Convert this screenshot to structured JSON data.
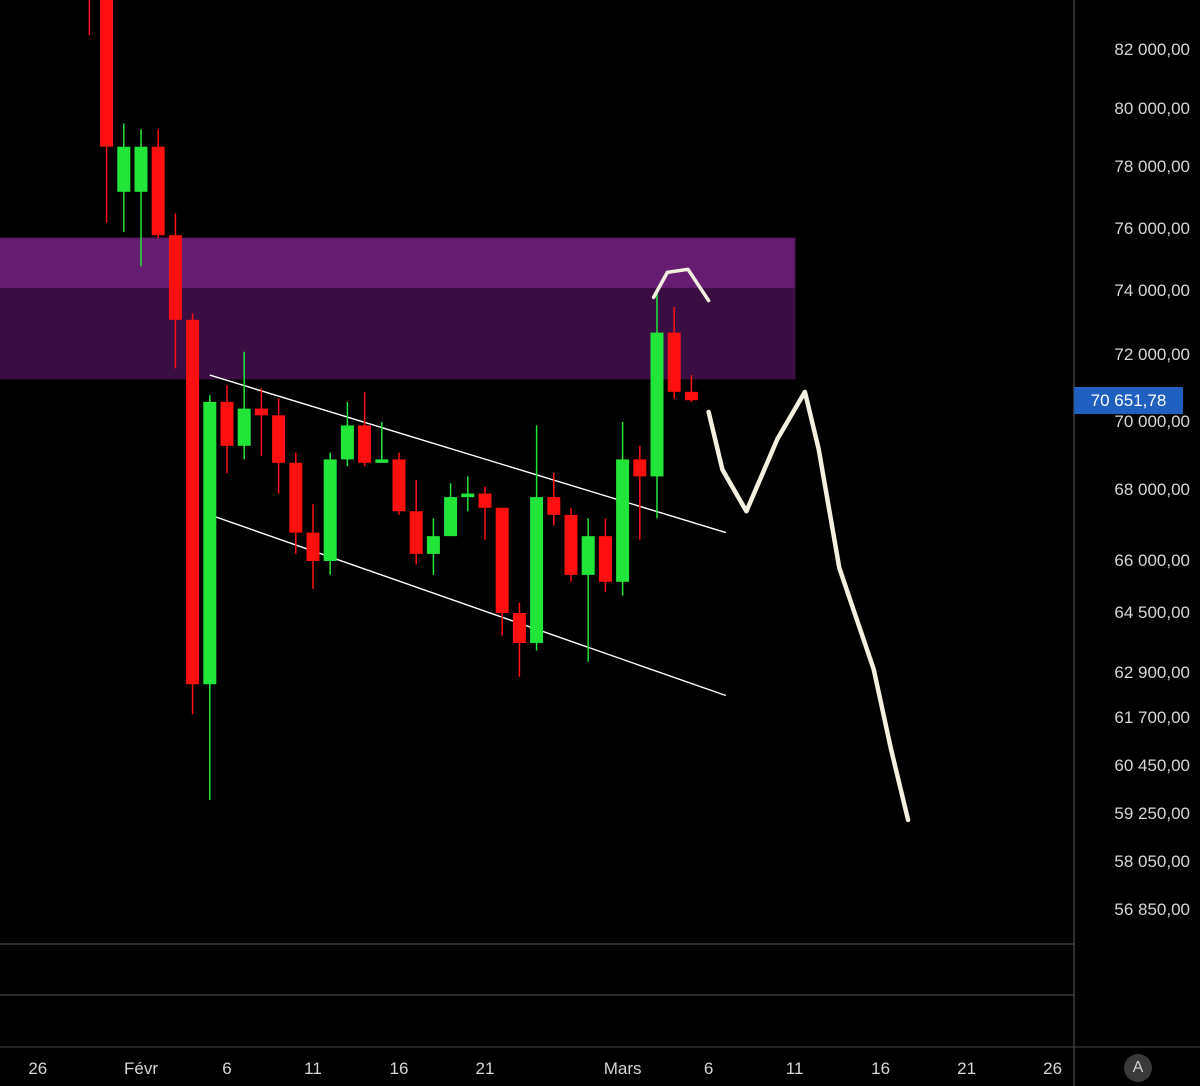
{
  "chart_data": {
    "type": "candlestick",
    "y_axis": {
      "ticks": [
        {
          "value": 82000,
          "label": "82 000,00"
        },
        {
          "value": 80000,
          "label": "80 000,00"
        },
        {
          "value": 78000,
          "label": "78 000,00"
        },
        {
          "value": 76000,
          "label": "76 000,00"
        },
        {
          "value": 74000,
          "label": "74 000,00"
        },
        {
          "value": 72000,
          "label": "72 000,00"
        },
        {
          "value": 70000,
          "label": "70 000,00"
        },
        {
          "value": 68000,
          "label": "68 000,00"
        },
        {
          "value": 66000,
          "label": "66 000,00"
        },
        {
          "value": 64500,
          "label": "64 500,00"
        },
        {
          "value": 62900,
          "label": "62 900,00"
        },
        {
          "value": 61700,
          "label": "61 700,00"
        },
        {
          "value": 60450,
          "label": "60 450,00"
        },
        {
          "value": 59250,
          "label": "59 250,00"
        },
        {
          "value": 58050,
          "label": "58 050,00"
        },
        {
          "value": 56850,
          "label": "56 850,00"
        }
      ]
    },
    "x_axis": {
      "ticks": [
        {
          "day": -6,
          "label": "26"
        },
        {
          "day": 0,
          "label": "Févr"
        },
        {
          "day": 5,
          "label": "6"
        },
        {
          "day": 10,
          "label": "11"
        },
        {
          "day": 15,
          "label": "16"
        },
        {
          "day": 20,
          "label": "21"
        },
        {
          "day": 28,
          "label": "Mars"
        },
        {
          "day": 33,
          "label": "6"
        },
        {
          "day": 38,
          "label": "11"
        },
        {
          "day": 43,
          "label": "16"
        },
        {
          "day": 48,
          "label": "21"
        },
        {
          "day": 53,
          "label": "26"
        }
      ]
    },
    "current_price": {
      "value": 70651.78,
      "label": "70 651,78"
    },
    "colors": {
      "up": "#22e53a",
      "down": "#ff1010",
      "zone": "#6a1a78",
      "zone_top": "#8a2a99",
      "drawing": "#f4f0e0"
    },
    "candles": [
      {
        "day": -3,
        "open": 85000,
        "high": 85500,
        "low": 82500,
        "close": 84000
      },
      {
        "day": -2,
        "open": 84500,
        "high": 85000,
        "low": 76200,
        "close": 78700
      },
      {
        "day": -1,
        "open": 77200,
        "high": 79500,
        "low": 75900,
        "close": 78700
      },
      {
        "day": 0,
        "open": 77200,
        "high": 79300,
        "low": 74800,
        "close": 78700
      },
      {
        "day": 1,
        "open": 78700,
        "high": 79300,
        "low": 75700,
        "close": 75800
      },
      {
        "day": 2,
        "open": 75800,
        "high": 76500,
        "low": 71600,
        "close": 73100
      },
      {
        "day": 3,
        "open": 73100,
        "high": 73300,
        "low": 61800,
        "close": 62600
      },
      {
        "day": 4,
        "open": 62600,
        "high": 70800,
        "low": 59600,
        "close": 70600
      },
      {
        "day": 5,
        "open": 70600,
        "high": 71100,
        "low": 68500,
        "close": 69300
      },
      {
        "day": 6,
        "open": 69300,
        "high": 72100,
        "low": 68900,
        "close": 70400
      },
      {
        "day": 7,
        "open": 70400,
        "high": 71000,
        "low": 69000,
        "close": 70200
      },
      {
        "day": 8,
        "open": 70200,
        "high": 70700,
        "low": 67900,
        "close": 68800
      },
      {
        "day": 9,
        "open": 68800,
        "high": 69100,
        "low": 66200,
        "close": 66800
      },
      {
        "day": 10,
        "open": 66800,
        "high": 67600,
        "low": 65200,
        "close": 66000
      },
      {
        "day": 11,
        "open": 66000,
        "high": 69100,
        "low": 65600,
        "close": 68900
      },
      {
        "day": 12,
        "open": 68900,
        "high": 70600,
        "low": 68700,
        "close": 69900
      },
      {
        "day": 13,
        "open": 69900,
        "high": 70900,
        "low": 68700,
        "close": 68800
      },
      {
        "day": 14,
        "open": 68800,
        "high": 70000,
        "low": 68800,
        "close": 68900
      },
      {
        "day": 15,
        "open": 68900,
        "high": 69100,
        "low": 67300,
        "close": 67400
      },
      {
        "day": 16,
        "open": 67400,
        "high": 68300,
        "low": 65900,
        "close": 66200
      },
      {
        "day": 17,
        "open": 66200,
        "high": 67200,
        "low": 65600,
        "close": 66700
      },
      {
        "day": 18,
        "open": 66700,
        "high": 68200,
        "low": 66700,
        "close": 67800
      },
      {
        "day": 19,
        "open": 67800,
        "high": 68400,
        "low": 67400,
        "close": 67900
      },
      {
        "day": 20,
        "open": 67900,
        "high": 68100,
        "low": 66600,
        "close": 67500
      },
      {
        "day": 21,
        "open": 67500,
        "high": 67500,
        "low": 63900,
        "close": 64500
      },
      {
        "day": 22,
        "open": 64500,
        "high": 64800,
        "low": 62800,
        "close": 63700
      },
      {
        "day": 23,
        "open": 63700,
        "high": 69900,
        "low": 63500,
        "close": 67800
      },
      {
        "day": 24,
        "open": 67800,
        "high": 68500,
        "low": 67000,
        "close": 67300
      },
      {
        "day": 25,
        "open": 67300,
        "high": 67500,
        "low": 65400,
        "close": 65600
      },
      {
        "day": 26,
        "open": 65600,
        "high": 67200,
        "low": 63200,
        "close": 66700
      },
      {
        "day": 27,
        "open": 66700,
        "high": 67200,
        "low": 65100,
        "close": 65400
      },
      {
        "day": 28,
        "open": 65400,
        "high": 70000,
        "low": 65000,
        "close": 68900
      },
      {
        "day": 29,
        "open": 68900,
        "high": 69300,
        "low": 66600,
        "close": 68400
      },
      {
        "day": 30,
        "open": 68400,
        "high": 74000,
        "low": 67200,
        "close": 72700
      },
      {
        "day": 31,
        "open": 72700,
        "high": 73500,
        "low": 70700,
        "close": 70900
      },
      {
        "day": 32,
        "open": 70900,
        "high": 71400,
        "low": 70600,
        "close": 70650
      }
    ],
    "zone": {
      "from_day": -10,
      "to_day": 38,
      "low": 71300,
      "high": 75700,
      "top_band_low": 74100
    },
    "channel_lines": [
      {
        "from": {
          "day": 4,
          "price": 71400
        },
        "to": {
          "day": 34,
          "price": 66800
        }
      },
      {
        "from": {
          "day": 4,
          "price": 67300
        },
        "to": {
          "day": 34,
          "price": 62300
        }
      }
    ],
    "projection_path": [
      {
        "day": 33.0,
        "price": 70300
      },
      {
        "day": 33.8,
        "price": 68600
      },
      {
        "day": 35.2,
        "price": 67400
      },
      {
        "day": 37.0,
        "price": 69500
      },
      {
        "day": 38.6,
        "price": 70900
      },
      {
        "day": 39.4,
        "price": 69200
      },
      {
        "day": 40.6,
        "price": 65800
      },
      {
        "day": 42.6,
        "price": 63000
      },
      {
        "day": 43.6,
        "price": 60900
      },
      {
        "day": 44.6,
        "price": 59100
      }
    ],
    "arc_path": [
      {
        "day": 29.8,
        "price": 73800
      },
      {
        "day": 30.6,
        "price": 74600
      },
      {
        "day": 31.8,
        "price": 74700
      },
      {
        "day": 33.0,
        "price": 73700
      }
    ]
  },
  "ui": {
    "auto_button_label": "A"
  }
}
